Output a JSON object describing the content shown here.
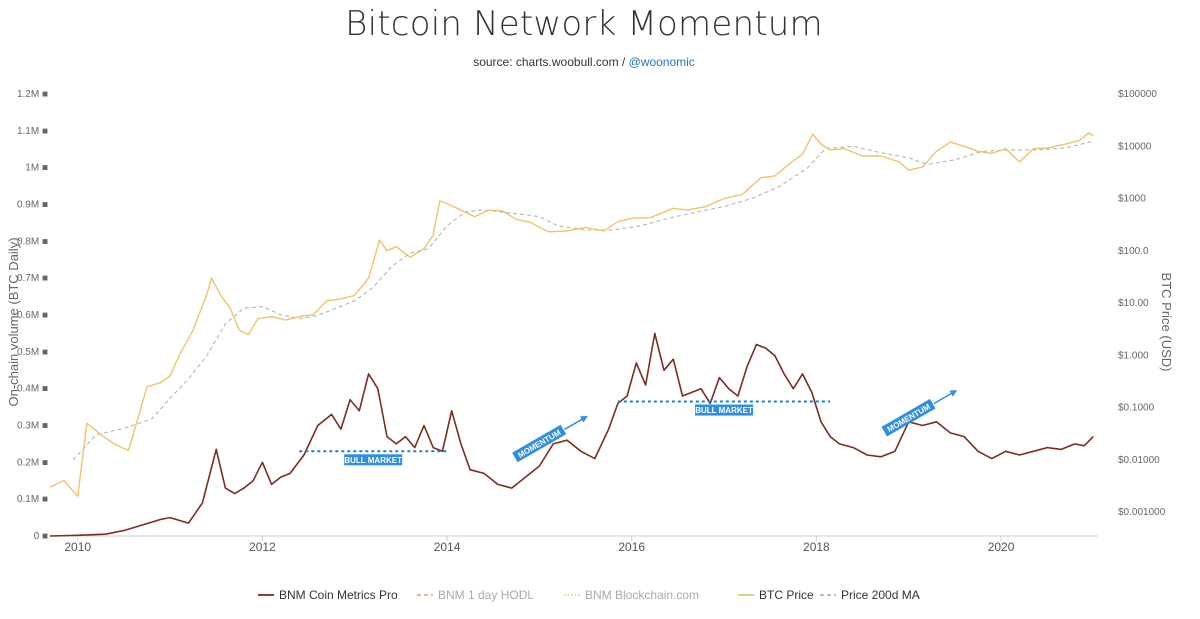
{
  "header": {
    "title": "Bitcoin Network Momentum",
    "source_prefix": "source: charts.woobull.com / ",
    "source_handle": "@woonomic"
  },
  "chart_data": {
    "type": "line",
    "title": "Bitcoin Network Momentum",
    "left_axis": {
      "label": "On-chain volume (BTC Daily)",
      "ticks": [
        "0 ■",
        "0.1M ■",
        "0.2M ■",
        "0.3M ■",
        "0.4M ■",
        "0.5M ■",
        "0.6M ■",
        "0.7M ■",
        "0.8M ■",
        "0.9M ■",
        "1M ■",
        "1.1M ■",
        "1.2M ■"
      ],
      "range": [
        0,
        1200000
      ]
    },
    "right_axis": {
      "label": "BTC Price (USD)",
      "scale": "log",
      "ticks": [
        "$0.001000",
        "$0.01000",
        "$0.1000",
        "$1.000",
        "$10.00",
        "$100.0",
        "$1000",
        "$10000",
        "$100000"
      ],
      "range": [
        0.001,
        100000
      ]
    },
    "x_axis": {
      "ticks": [
        "2010",
        "2012",
        "2014",
        "2016",
        "2018",
        "2020"
      ],
      "range": [
        2009.7,
        2021.05
      ]
    },
    "grid": "none",
    "legend_position": "bottom",
    "series": [
      {
        "name": "BNM Coin Metrics Pro",
        "axis": "left",
        "color": "#7a2e1e",
        "x": [
          2009.7,
          2010.0,
          2010.3,
          2010.5,
          2010.7,
          2010.9,
          2011.0,
          2011.2,
          2011.35,
          2011.5,
          2011.6,
          2011.7,
          2011.8,
          2011.9,
          2012.0,
          2012.1,
          2012.2,
          2012.3,
          2012.45,
          2012.6,
          2012.75,
          2012.85,
          2012.95,
          2013.05,
          2013.15,
          2013.25,
          2013.35,
          2013.45,
          2013.55,
          2013.65,
          2013.75,
          2013.85,
          2013.95,
          2014.05,
          2014.15,
          2014.25,
          2014.4,
          2014.55,
          2014.7,
          2014.85,
          2015.0,
          2015.15,
          2015.3,
          2015.45,
          2015.6,
          2015.75,
          2015.85,
          2015.95,
          2016.05,
          2016.15,
          2016.25,
          2016.35,
          2016.45,
          2016.55,
          2016.65,
          2016.75,
          2016.85,
          2016.95,
          2017.05,
          2017.15,
          2017.25,
          2017.35,
          2017.45,
          2017.55,
          2017.65,
          2017.75,
          2017.85,
          2017.95,
          2018.05,
          2018.15,
          2018.25,
          2018.4,
          2018.55,
          2018.7,
          2018.85,
          2019.0,
          2019.15,
          2019.3,
          2019.45,
          2019.6,
          2019.75,
          2019.9,
          2020.05,
          2020.2,
          2020.35,
          2020.5,
          2020.65,
          2020.8,
          2020.9,
          2021.0
        ],
        "values": [
          0,
          2000,
          5000,
          15000,
          30000,
          45000,
          50000,
          35000,
          90000,
          235000,
          130000,
          115000,
          130000,
          150000,
          200000,
          140000,
          160000,
          170000,
          220000,
          300000,
          330000,
          290000,
          370000,
          340000,
          440000,
          400000,
          270000,
          250000,
          270000,
          240000,
          300000,
          240000,
          230000,
          340000,
          250000,
          180000,
          170000,
          140000,
          130000,
          160000,
          190000,
          250000,
          260000,
          230000,
          210000,
          290000,
          360000,
          380000,
          470000,
          410000,
          550000,
          450000,
          480000,
          380000,
          390000,
          400000,
          360000,
          430000,
          400000,
          380000,
          460000,
          520000,
          510000,
          490000,
          440000,
          400000,
          440000,
          390000,
          310000,
          270000,
          250000,
          240000,
          220000,
          215000,
          230000,
          310000,
          300000,
          310000,
          280000,
          270000,
          230000,
          210000,
          230000,
          220000,
          230000,
          240000,
          235000,
          250000,
          245000,
          270000
        ]
      },
      {
        "name": "BNM 1 day HODL",
        "axis": "left",
        "color": "#f4a582",
        "dash": "dashed",
        "visible": false
      },
      {
        "name": "BNM Blockchain.com",
        "axis": "left",
        "color": "#e6d37a",
        "dash": "dotted",
        "visible": false
      },
      {
        "name": "BTC Price",
        "axis": "right",
        "color": "#f2c26b",
        "x": [
          2009.7,
          2009.85,
          2010.0,
          2010.1,
          2010.25,
          2010.4,
          2010.55,
          2010.65,
          2010.75,
          2010.9,
          2011.0,
          2011.1,
          2011.25,
          2011.4,
          2011.45,
          2011.55,
          2011.65,
          2011.75,
          2011.85,
          2011.95,
          2012.1,
          2012.25,
          2012.4,
          2012.55,
          2012.7,
          2012.85,
          2013.0,
          2013.15,
          2013.27,
          2013.35,
          2013.45,
          2013.6,
          2013.75,
          2013.85,
          2013.92,
          2014.0,
          2014.15,
          2014.3,
          2014.45,
          2014.6,
          2014.75,
          2014.9,
          2015.0,
          2015.1,
          2015.3,
          2015.5,
          2015.7,
          2015.85,
          2016.0,
          2016.2,
          2016.45,
          2016.6,
          2016.8,
          2017.0,
          2017.2,
          2017.4,
          2017.55,
          2017.7,
          2017.85,
          2017.96,
          2018.05,
          2018.15,
          2018.3,
          2018.5,
          2018.7,
          2018.9,
          2019.0,
          2019.15,
          2019.3,
          2019.45,
          2019.6,
          2019.75,
          2019.9,
          2020.05,
          2020.2,
          2020.35,
          2020.5,
          2020.7,
          2020.85,
          2020.95,
          2021.0
        ],
        "values": [
          0.003,
          0.004,
          0.002,
          0.05,
          0.03,
          0.02,
          0.015,
          0.06,
          0.25,
          0.3,
          0.4,
          1.0,
          3.0,
          15.0,
          30.0,
          14.0,
          8.0,
          3.0,
          2.5,
          5.0,
          5.5,
          4.7,
          5.5,
          6.0,
          11.0,
          12.0,
          14.0,
          30.0,
          160.0,
          100.0,
          120.0,
          75.0,
          110.0,
          200.0,
          900.0,
          800.0,
          600.0,
          450.0,
          600.0,
          580.0,
          400.0,
          350.0,
          280.0,
          230.0,
          240.0,
          280.0,
          240.0,
          360.0,
          420.0,
          430.0,
          650.0,
          600.0,
          700.0,
          1000.0,
          1200.0,
          2500.0,
          2700.0,
          4500.0,
          7000.0,
          17000.0,
          11000.0,
          8500.0,
          9000.0,
          6500.0,
          6500.0,
          5000.0,
          3500.0,
          4000.0,
          8000.0,
          12000.0,
          10000.0,
          8000.0,
          7300.0,
          9000.0,
          5000.0,
          9000.0,
          9200.0,
          11000.0,
          13000.0,
          18000.0,
          16000.0
        ]
      },
      {
        "name": "Price 200d MA",
        "axis": "right",
        "color": "#b5b5b5",
        "dash": "dashed",
        "x": [
          2009.95,
          2010.2,
          2010.5,
          2010.8,
          2011.0,
          2011.2,
          2011.4,
          2011.6,
          2011.8,
          2012.0,
          2012.2,
          2012.4,
          2012.6,
          2012.8,
          2013.0,
          2013.2,
          2013.4,
          2013.6,
          2013.8,
          2014.0,
          2014.2,
          2014.4,
          2014.6,
          2014.8,
          2015.0,
          2015.2,
          2015.5,
          2015.8,
          2016.1,
          2016.4,
          2016.7,
          2017.0,
          2017.3,
          2017.6,
          2017.9,
          2018.1,
          2018.4,
          2018.7,
          2019.0,
          2019.2,
          2019.5,
          2019.8,
          2020.1,
          2020.4,
          2020.7,
          2021.0
        ],
        "values": [
          0.01,
          0.03,
          0.04,
          0.06,
          0.15,
          0.35,
          1.0,
          4.0,
          8.0,
          8.5,
          6.0,
          5.0,
          5.8,
          8.0,
          11.0,
          20.0,
          50.0,
          90.0,
          110.0,
          300.0,
          560.0,
          600.0,
          550.0,
          500.0,
          450.0,
          300.0,
          250.0,
          250.0,
          300.0,
          420.0,
          550.0,
          700.0,
          1000.0,
          1700.0,
          3800.0,
          9000.0,
          10000.0,
          7500.0,
          6000.0,
          4500.0,
          5500.0,
          8000.0,
          8500.0,
          8500.0,
          9300.0,
          12500.0
        ]
      }
    ],
    "annotations": {
      "bull_markets": [
        {
          "label": "BULL MARKET",
          "x_start": 2012.4,
          "x_end": 2014.0,
          "y": 230000
        },
        {
          "label": "BULL MARKET",
          "x_start": 2015.85,
          "x_end": 2018.15,
          "y": 365000
        }
      ],
      "momentum": [
        {
          "label": "MOMENTUM",
          "x": 2015.0,
          "y": 250000
        },
        {
          "label": "MOMENTUM",
          "x": 2019.0,
          "y": 320000
        }
      ]
    }
  }
}
